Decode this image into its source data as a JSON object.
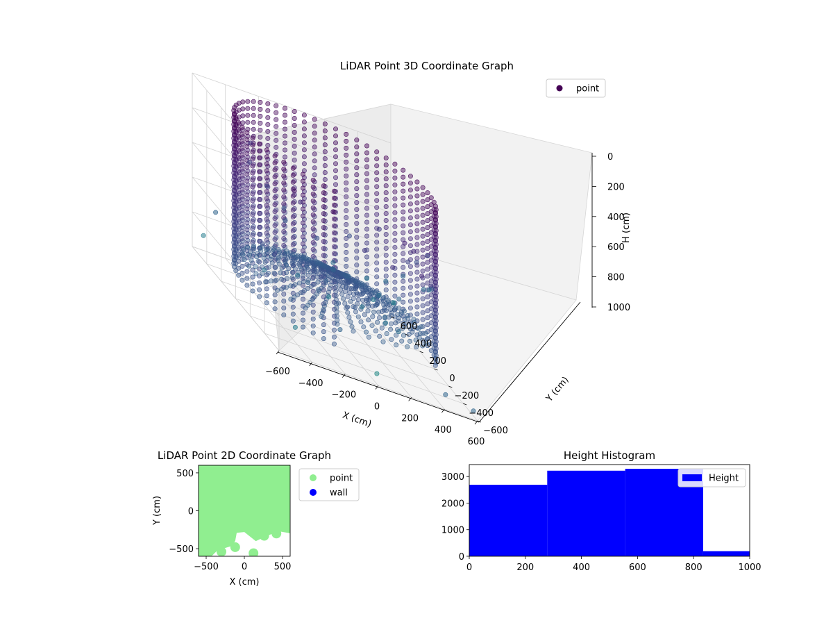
{
  "chart_data": [
    {
      "type": "scatter3d",
      "title": "LiDAR Point 3D Coordinate Graph",
      "xlabel": "X (cm)",
      "ylabel": "Y (cm)",
      "zlabel": "H (cm)",
      "xlim": [
        -600,
        600
      ],
      "ylim": [
        -600,
        600
      ],
      "zlim": [
        0,
        1000
      ],
      "z_inverted": true,
      "x_ticks": [
        "−600",
        "−400",
        "−200",
        "0",
        "200",
        "400",
        "600"
      ],
      "y_ticks": [
        "−600",
        "−400",
        "−200",
        "0",
        "200",
        "400",
        "600"
      ],
      "z_ticks": [
        "0",
        "200",
        "400",
        "600",
        "800",
        "1000"
      ],
      "colormap": "viridis (by height, dark purple → teal)",
      "legend": {
        "position": "top-right",
        "entries": [
          {
            "label": "point",
            "color": "#440154"
          }
        ]
      },
      "grid": true,
      "series": [
        {
          "name": "point",
          "description_of_shapes": "ring wall at radius ~550 cm from H 0–900, dense floor bowl near H 600–800, outlying scattered points",
          "x": [
            -560,
            -520,
            -470,
            -410,
            -340,
            -260,
            -170,
            -80,
            10,
            100,
            190,
            270,
            350,
            420,
            480,
            530,
            560,
            580,
            590,
            560,
            500,
            420,
            -350,
            -300,
            -250,
            -200,
            -150,
            -100,
            -50,
            0,
            50,
            100,
            150,
            200,
            250,
            300,
            -420,
            -380,
            450,
            520,
            560,
            -550,
            -590,
            -480,
            600,
            610,
            -200,
            0,
            200,
            350,
            -100,
            120,
            300,
            420,
            -300,
            -150
          ],
          "y": [
            -100,
            -250,
            -370,
            -460,
            -530,
            -570,
            -590,
            -595,
            -590,
            -570,
            -530,
            -470,
            -400,
            -320,
            -230,
            -130,
            -20,
            100,
            220,
            340,
            440,
            520,
            200,
            150,
            100,
            60,
            30,
            0,
            -30,
            -50,
            -60,
            -50,
            -30,
            0,
            40,
            80,
            -400,
            300,
            -500,
            500,
            400,
            560,
            300,
            -550,
            560,
            -520,
            520,
            -580,
            580,
            100,
            -300,
            300,
            -200,
            -50,
            0,
            -150
          ],
          "z": [
            150,
            200,
            250,
            150,
            300,
            100,
            200,
            250,
            100,
            300,
            150,
            200,
            350,
            250,
            450,
            500,
            550,
            600,
            500,
            650,
            750,
            800,
            700,
            720,
            740,
            760,
            770,
            780,
            790,
            800,
            800,
            790,
            780,
            760,
            740,
            720,
            120,
            180,
            950,
            980,
            1000,
            900,
            650,
            850,
            900,
            980,
            960,
            940,
            920,
            870,
            860,
            700,
            600,
            420,
            450,
            650
          ]
        }
      ]
    },
    {
      "type": "scatter",
      "title": "LiDAR Point 2D Coordinate Graph",
      "xlabel": "X (cm)",
      "ylabel": "Y (cm)",
      "xlim": [
        -600,
        600
      ],
      "ylim": [
        -600,
        600
      ],
      "x_ticks": [
        "−500",
        "0",
        "500"
      ],
      "y_ticks": [
        "−500",
        "0",
        "500"
      ],
      "legend": {
        "position": "outside-right",
        "entries": [
          {
            "label": "point",
            "color": "#90ee90"
          },
          {
            "label": "wall",
            "color": "#0000ff"
          }
        ]
      },
      "series": [
        {
          "name": "point",
          "color": "#90ee90",
          "region_outline": [
            [
              -600,
              610
            ],
            [
              -480,
              620
            ],
            [
              -450,
              580
            ],
            [
              -350,
              620
            ],
            [
              620,
              630
            ],
            [
              620,
              -300
            ],
            [
              450,
              -270
            ],
            [
              300,
              -330
            ],
            [
              150,
              -400
            ],
            [
              0,
              -280
            ],
            [
              -100,
              -290
            ],
            [
              -120,
              -400
            ],
            [
              -180,
              -470
            ],
            [
              -350,
              -520
            ],
            [
              -450,
              -620
            ],
            [
              -540,
              -560
            ],
            [
              -600,
              -580
            ]
          ]
        },
        {
          "name": "wall",
          "color": "#0000ff",
          "x": [],
          "y": []
        }
      ]
    },
    {
      "type": "histogram",
      "title": "Height Histogram",
      "xlim": [
        0,
        1000
      ],
      "ylim": [
        0,
        3450
      ],
      "x_ticks": [
        "0",
        "200",
        "400",
        "600",
        "800",
        "1000"
      ],
      "y_ticks": [
        "0",
        "1000",
        "2000",
        "3000"
      ],
      "legend": {
        "position": "top-right",
        "entries": [
          {
            "label": "Height",
            "color": "#0000ff"
          }
        ]
      },
      "series": [
        {
          "name": "Height",
          "color": "#0000ff",
          "bin_edges": [
            0,
            278,
            556,
            834,
            1112
          ],
          "counts": [
            2690,
            3220,
            3290,
            190
          ]
        }
      ]
    }
  ]
}
